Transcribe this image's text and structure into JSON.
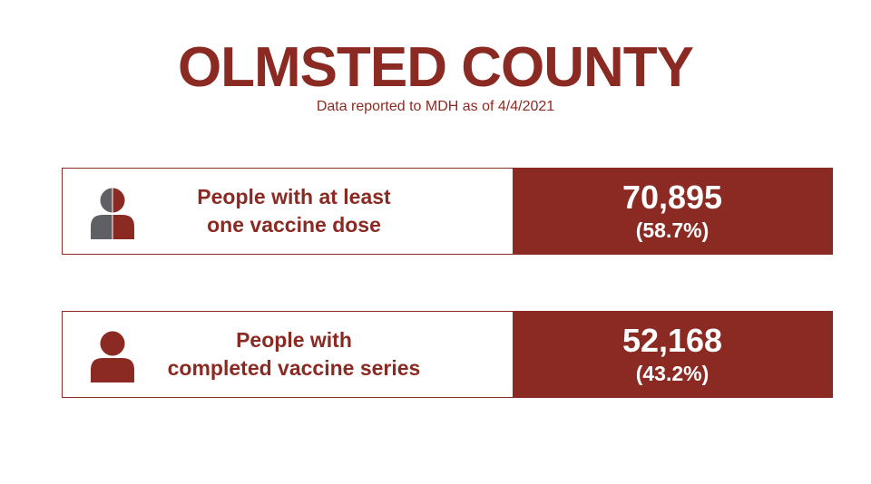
{
  "header": {
    "title": "OLMSTED COUNTY",
    "subtitle": "Data reported to MDH as of 4/4/2021"
  },
  "stats": [
    {
      "label_line1": "People with at least",
      "label_line2": "one vaccine dose",
      "value": "70,895",
      "percent": "(58.7%)",
      "icon": "half-filled-person-icon"
    },
    {
      "label_line1": "People with",
      "label_line2": "completed vaccine series",
      "value": "52,168",
      "percent": "(43.2%)",
      "icon": "filled-person-icon"
    }
  ],
  "colors": {
    "accent": "#8b2a22",
    "icon_gray": "#5f6063",
    "background": "#ffffff"
  }
}
